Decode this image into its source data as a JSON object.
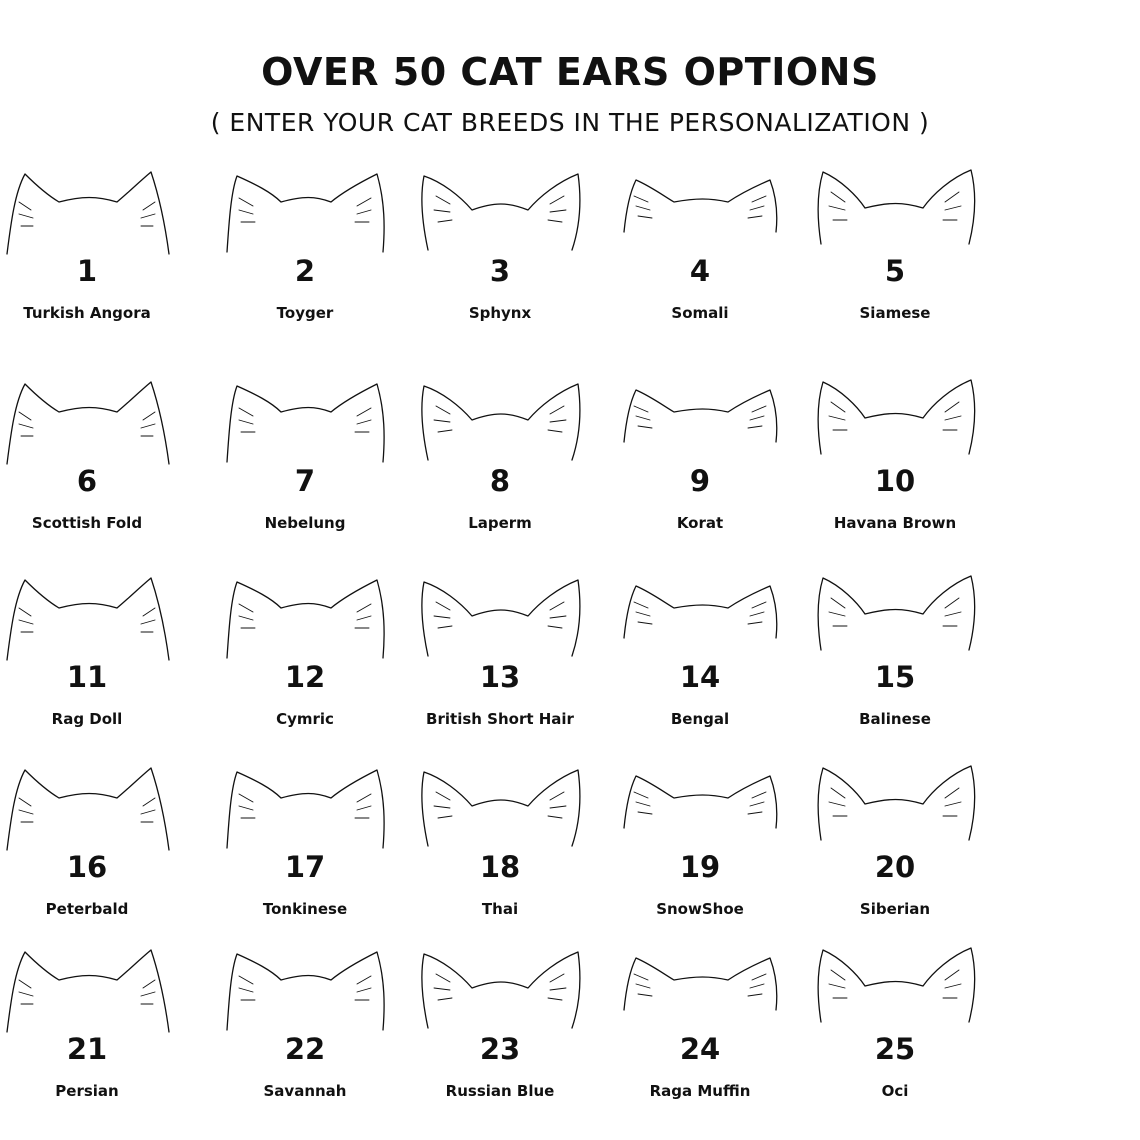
{
  "header": {
    "title": "OVER 50 CAT EARS OPTIONS",
    "subtitle": "( ENTER YOUR CAT BREEDS IN THE PERSONALIZATION )"
  },
  "options": [
    {
      "number": "1",
      "breed": "Turkish Angora",
      "icon": "cat-ears-icon"
    },
    {
      "number": "2",
      "breed": "Toyger",
      "icon": "cat-ears-icon"
    },
    {
      "number": "3",
      "breed": "Sphynx",
      "icon": "cat-ears-icon"
    },
    {
      "number": "4",
      "breed": "Somali",
      "icon": "cat-ears-icon"
    },
    {
      "number": "5",
      "breed": "Siamese",
      "icon": "cat-ears-icon"
    },
    {
      "number": "6",
      "breed": "Scottish Fold",
      "icon": "cat-ears-icon"
    },
    {
      "number": "7",
      "breed": "Nebelung",
      "icon": "cat-ears-icon"
    },
    {
      "number": "8",
      "breed": "Laperm",
      "icon": "cat-ears-icon"
    },
    {
      "number": "9",
      "breed": "Korat",
      "icon": "cat-ears-icon"
    },
    {
      "number": "10",
      "breed": "Havana Brown",
      "icon": "cat-ears-icon"
    },
    {
      "number": "11",
      "breed": "Rag Doll",
      "icon": "cat-ears-icon"
    },
    {
      "number": "12",
      "breed": "Cymric",
      "icon": "cat-ears-icon"
    },
    {
      "number": "13",
      "breed": "British Short Hair",
      "icon": "cat-ears-icon"
    },
    {
      "number": "14",
      "breed": "Bengal",
      "icon": "cat-ears-icon"
    },
    {
      "number": "15",
      "breed": "Balinese",
      "icon": "cat-ears-icon"
    },
    {
      "number": "16",
      "breed": "Peterbald",
      "icon": "cat-ears-icon"
    },
    {
      "number": "17",
      "breed": "Tonkinese",
      "icon": "cat-ears-icon"
    },
    {
      "number": "18",
      "breed": "Thai",
      "icon": "cat-ears-icon"
    },
    {
      "number": "19",
      "breed": "SnowShoe",
      "icon": "cat-ears-icon"
    },
    {
      "number": "20",
      "breed": "Siberian",
      "icon": "cat-ears-icon"
    },
    {
      "number": "21",
      "breed": "Persian",
      "icon": "cat-ears-icon"
    },
    {
      "number": "22",
      "breed": "Savannah",
      "icon": "cat-ears-icon"
    },
    {
      "number": "23",
      "breed": "Russian Blue",
      "icon": "cat-ears-icon"
    },
    {
      "number": "24",
      "breed": "Raga Muffin",
      "icon": "cat-ears-icon"
    },
    {
      "number": "25",
      "breed": "Oci",
      "icon": "cat-ears-icon"
    }
  ]
}
